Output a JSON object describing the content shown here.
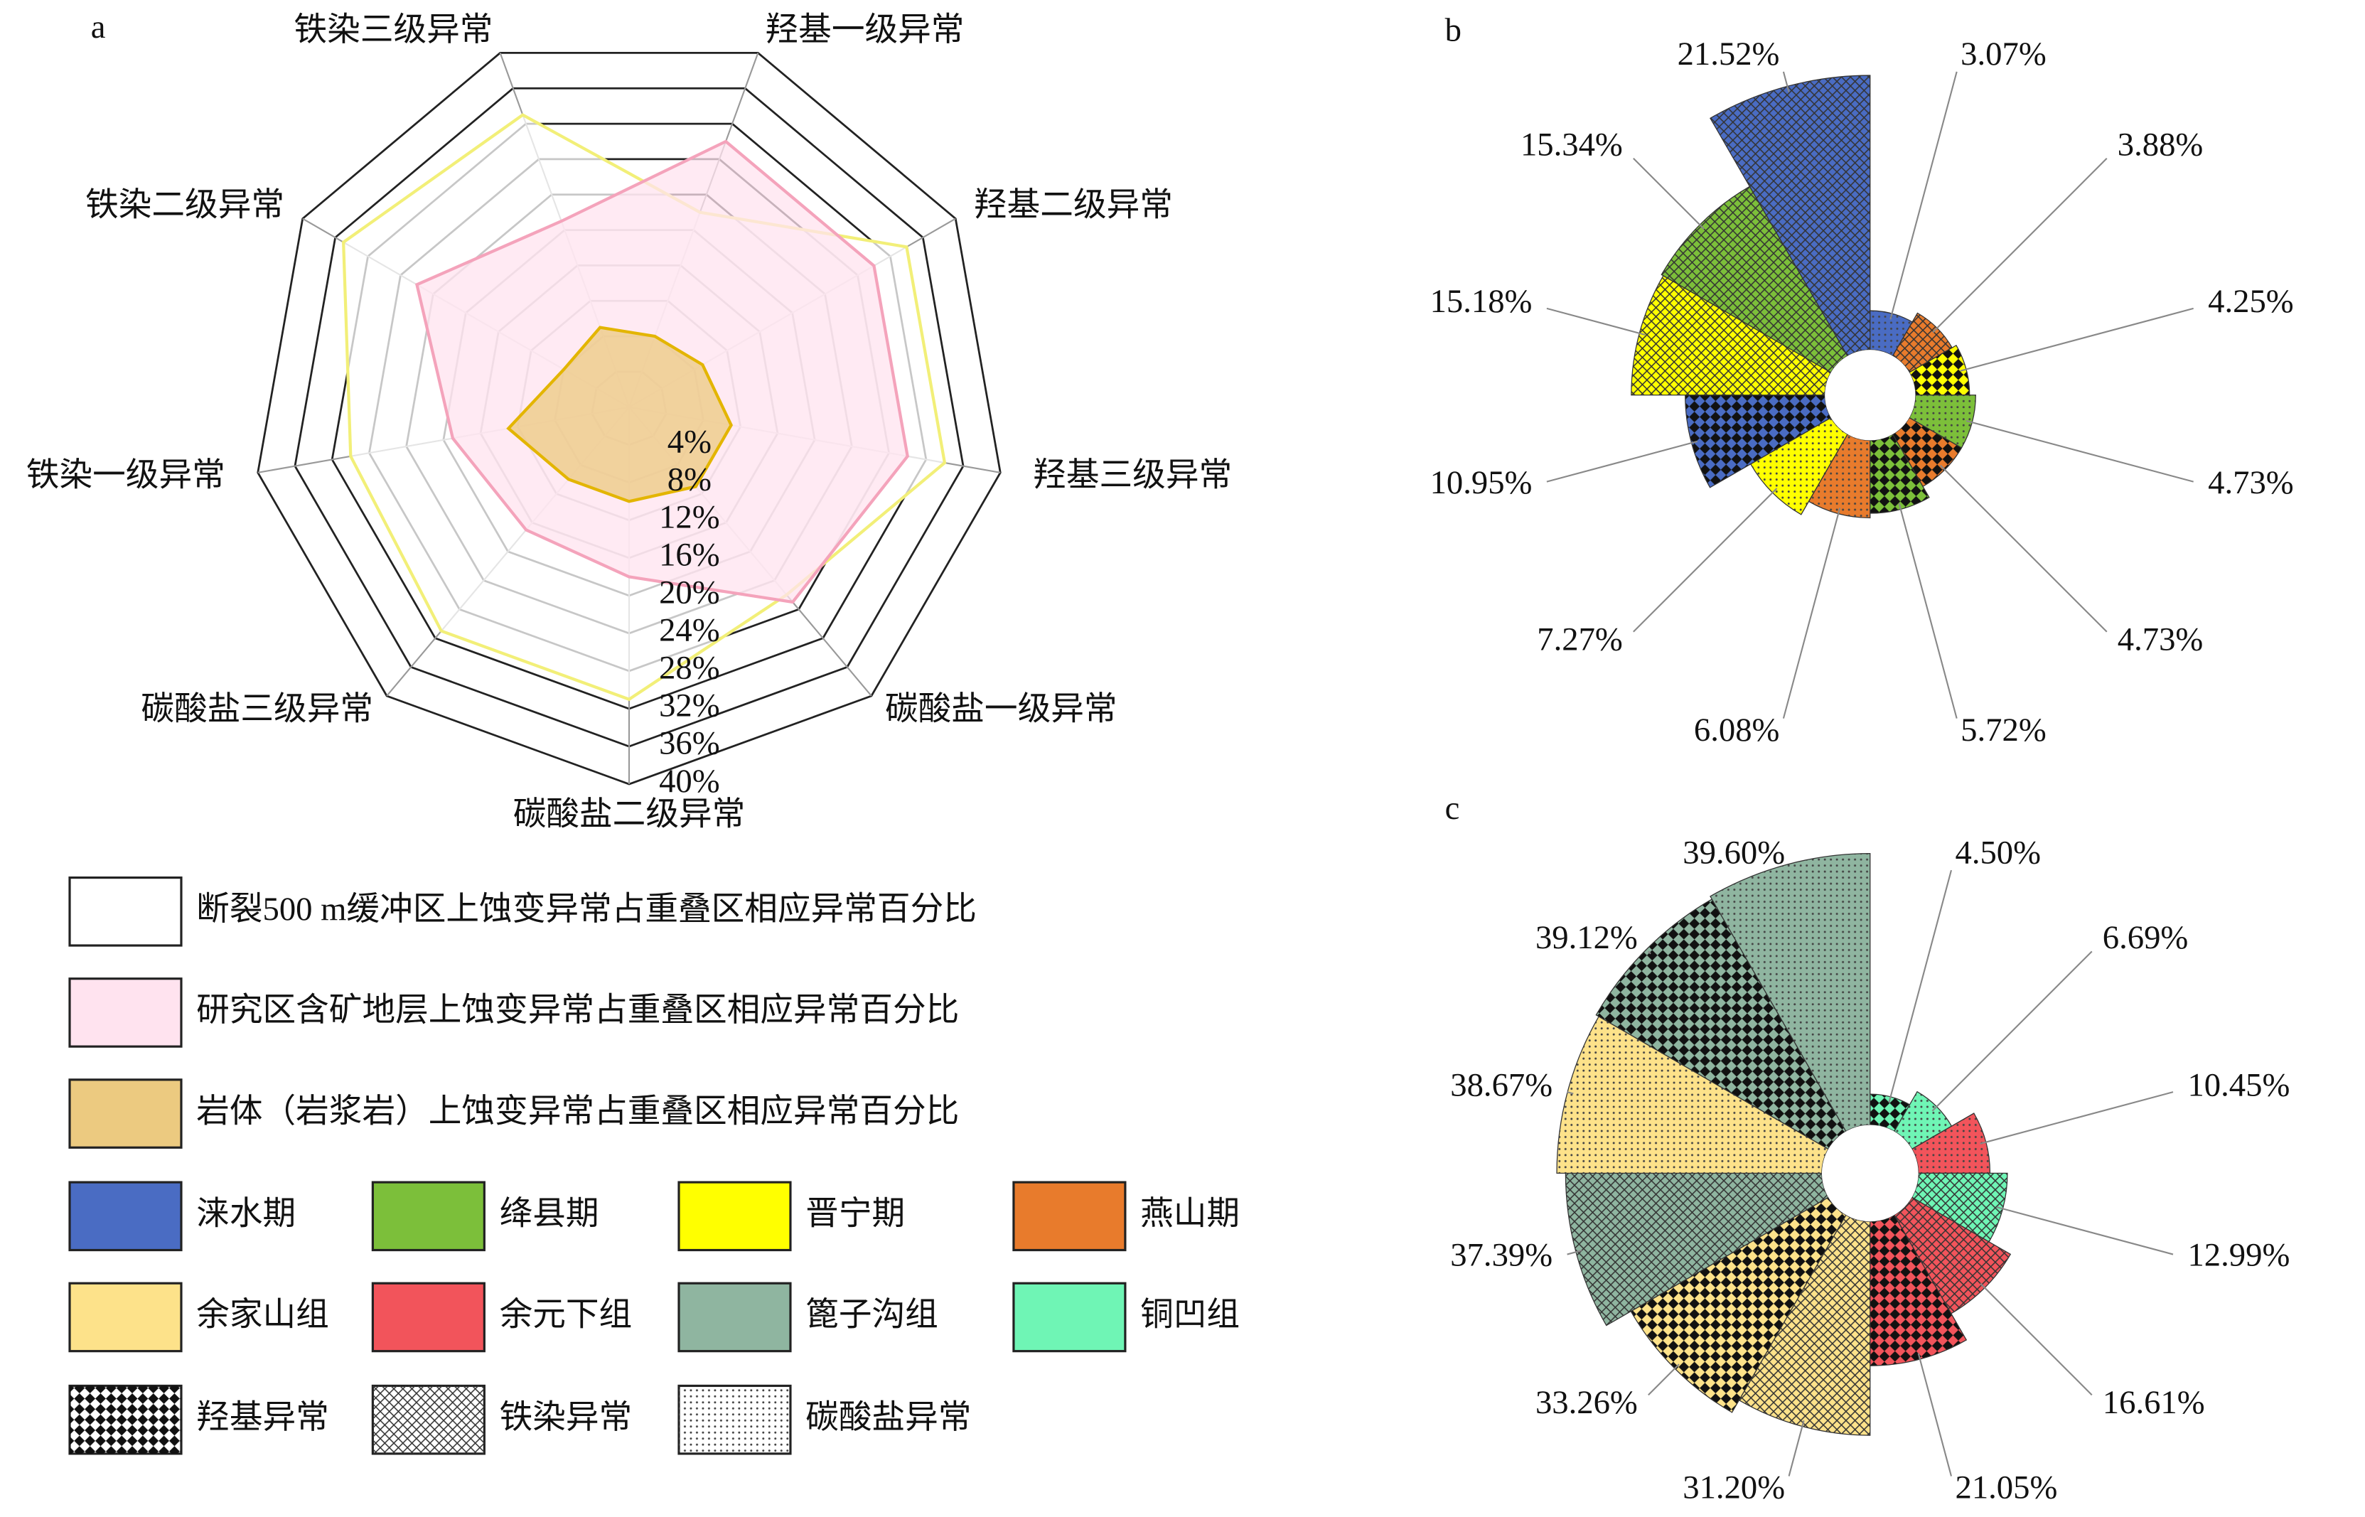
{
  "chart_data": [
    {
      "type": "radar",
      "label": "a",
      "axes": [
        "羟基一级异常",
        "羟基二级异常",
        "羟基三级异常",
        "碳酸盐一级异常",
        "碳酸盐二级异常",
        "碳酸盐三级异常",
        "铁染一级异常",
        "铁染二级异常",
        "铁染三级异常"
      ],
      "ylim": [
        0,
        40
      ],
      "yticks": [
        {
          "value": 4,
          "label": "4%"
        },
        {
          "value": 8,
          "label": "8%"
        },
        {
          "value": 12,
          "label": "12%"
        },
        {
          "value": 16,
          "label": "16%"
        },
        {
          "value": 20,
          "label": "20%"
        },
        {
          "value": 24,
          "label": "24%"
        },
        {
          "value": 28,
          "label": "28%"
        },
        {
          "value": 32,
          "label": "32%"
        },
        {
          "value": 36,
          "label": "36%"
        },
        {
          "value": 40,
          "label": "40%"
        }
      ],
      "series": [
        {
          "name": "断裂500 m缓冲区上蚀变异常占重叠区相应异常百分比",
          "color": "#ffffff",
          "line_color": "#f2ef78",
          "values": [
            22,
            34,
            34,
            26,
            31,
            31,
            30,
            35,
            33
          ]
        },
        {
          "name": "研究区含矿地层上蚀变异常占重叠区相应异常百分比",
          "color": "#ffe3ef",
          "line_color": "#f4a3bb",
          "values": [
            30,
            30,
            30,
            27,
            18,
            17,
            19,
            26,
            21
          ]
        },
        {
          "name": "岩体（岩浆岩）上蚀变异常占重叠区相应异常百分比",
          "color": "#ecca80",
          "line_color": "#e3b500",
          "values": [
            8,
            9,
            11,
            11,
            10,
            10,
            13,
            8,
            9
          ]
        }
      ]
    },
    {
      "type": "rose",
      "label": "b",
      "values": [
        3.07,
        3.88,
        4.25,
        4.73,
        4.73,
        5.72,
        6.08,
        7.27,
        10.95,
        15.18,
        15.34,
        21.52
      ],
      "value_labels": [
        "3.07%",
        "3.88%",
        "4.25%",
        "4.73%",
        "4.73%",
        "5.72%",
        "6.08%",
        "7.27%",
        "10.95%",
        "15.18%",
        "15.34%",
        "21.52%"
      ],
      "colors": [
        "#4a6cc3",
        "#e87b2c",
        "#ffff00",
        "#7cbf3a",
        "#e87b2c",
        "#7cbf3a",
        "#e87b2c",
        "#ffff00",
        "#4a6cc3",
        "#ffff00",
        "#7cbf3a",
        "#4a6cc3"
      ],
      "patterns": [
        "dots",
        "hatch",
        "diamond",
        "dots",
        "diamond",
        "diamond",
        "dots",
        "dots",
        "diamond",
        "hatch",
        "hatch",
        "hatch"
      ]
    },
    {
      "type": "rose",
      "label": "c",
      "values": [
        4.5,
        6.69,
        10.45,
        12.99,
        16.61,
        21.05,
        31.2,
        33.26,
        37.39,
        38.67,
        39.12,
        39.6
      ],
      "value_labels": [
        "4.50%",
        "6.69%",
        "10.45%",
        "12.99%",
        "16.61%",
        "21.05%",
        "31.20%",
        "33.26%",
        "37.39%",
        "38.67%",
        "39.12%",
        "39.60%"
      ],
      "colors": [
        "#6ff5b5",
        "#6ff5b5",
        "#f2545b",
        "#6ff5b5",
        "#f2545b",
        "#f2545b",
        "#fde28a",
        "#fde28a",
        "#8fb5a0",
        "#fde28a",
        "#8fb5a0",
        "#8fb5a0"
      ],
      "patterns": [
        "diamond",
        "dots",
        "dots",
        "hatch",
        "hatch",
        "diamond",
        "hatch",
        "diamond",
        "hatch",
        "dots",
        "diamond",
        "dots"
      ]
    }
  ],
  "legend": {
    "colors": [
      {
        "name": "涞水期",
        "color": "#4a6cc3"
      },
      {
        "name": "绛县期",
        "color": "#7cbf3a"
      },
      {
        "name": "晋宁期",
        "color": "#ffff00"
      },
      {
        "name": "燕山期",
        "color": "#e87b2c"
      },
      {
        "name": "余家山组",
        "color": "#fde28a"
      },
      {
        "name": "余元下组",
        "color": "#f2545b"
      },
      {
        "name": "篦子沟组",
        "color": "#8fb5a0"
      },
      {
        "name": "铜凹组",
        "color": "#6ff5b5"
      }
    ],
    "patterns": [
      {
        "name": "羟基异常",
        "pattern": "diamond"
      },
      {
        "name": "铁染异常",
        "pattern": "hatch"
      },
      {
        "name": "碳酸盐异常",
        "pattern": "dots"
      }
    ]
  }
}
